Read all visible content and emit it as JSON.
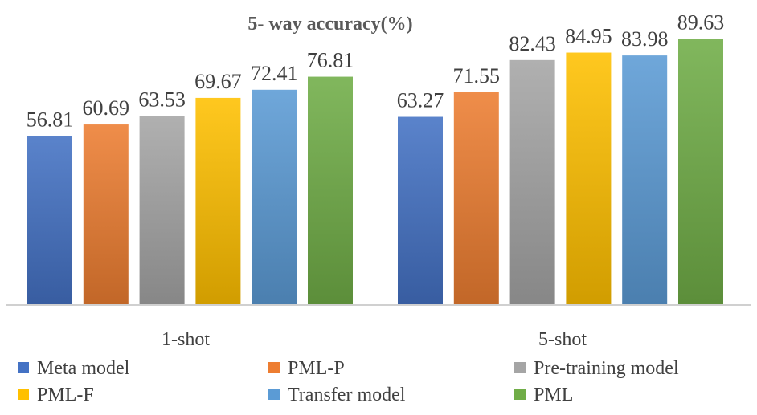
{
  "chart_data": {
    "type": "bar",
    "title": "5- way accuracy(%)",
    "categories": [
      "1-shot",
      "5-shot"
    ],
    "series": [
      {
        "name": "Meta model",
        "values": [
          56.81,
          63.27
        ],
        "color": "#4472C4"
      },
      {
        "name": "PML-P",
        "values": [
          60.69,
          71.55
        ],
        "color": "#ED7D31"
      },
      {
        "name": "Pre-training model",
        "values": [
          63.53,
          82.43
        ],
        "color": "#A5A5A5"
      },
      {
        "name": "PML-F",
        "values": [
          69.67,
          84.95
        ],
        "color": "#FFC000"
      },
      {
        "name": "Transfer model",
        "values": [
          72.41,
          83.98
        ],
        "color": "#5B9BD5"
      },
      {
        "name": "PML",
        "values": [
          76.81,
          89.63
        ],
        "color": "#70AD47"
      }
    ],
    "ylim": [
      0,
      100
    ],
    "grid": false,
    "legend_position": "bottom"
  }
}
